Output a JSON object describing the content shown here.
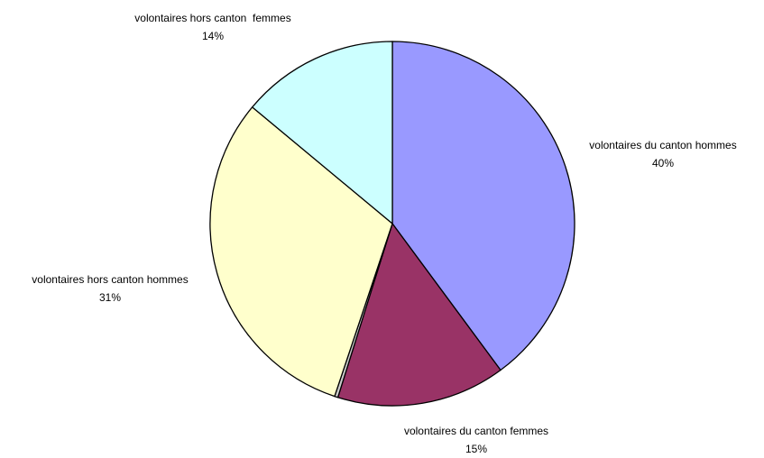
{
  "chart_data": {
    "type": "pie",
    "slices": [
      {
        "label": "volontaires du canton hommes",
        "value": 40,
        "value_text": "40%",
        "color": "#9999FF"
      },
      {
        "label": "volontaires du canton femmes",
        "value": 15,
        "value_text": "15%",
        "color": "#993366"
      },
      {
        "label": "volontaires hors canton",
        "value": 0.3,
        "value_text": "",
        "color": "#CCCCCC"
      },
      {
        "label": "volontaires hors canton hommes",
        "value": 31,
        "value_text": "31%",
        "color": "#FFFFCC"
      },
      {
        "label": "volontaires hors canton  femmes",
        "value": 14,
        "value_text": "14%",
        "color": "#CCFFFF"
      }
    ],
    "legend": "none"
  }
}
